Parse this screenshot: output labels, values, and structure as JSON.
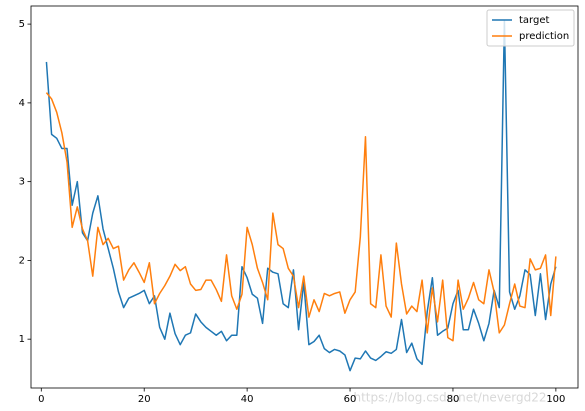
{
  "chart_data": {
    "type": "line",
    "x": [
      1,
      2,
      3,
      4,
      5,
      6,
      7,
      8,
      9,
      10,
      11,
      12,
      13,
      14,
      15,
      16,
      17,
      18,
      19,
      20,
      21,
      22,
      23,
      24,
      25,
      26,
      27,
      28,
      29,
      30,
      31,
      32,
      33,
      34,
      35,
      36,
      37,
      38,
      39,
      40,
      41,
      42,
      43,
      44,
      45,
      46,
      47,
      48,
      49,
      50,
      51,
      52,
      53,
      54,
      55,
      56,
      57,
      58,
      59,
      60,
      61,
      62,
      63,
      64,
      65,
      66,
      67,
      68,
      69,
      70,
      71,
      72,
      73,
      74,
      75,
      76,
      77,
      78,
      79,
      80,
      81,
      82,
      83,
      84,
      85,
      86,
      87,
      88,
      89,
      90,
      91,
      92,
      93,
      94,
      95,
      96,
      97,
      98,
      99,
      100
    ],
    "series": [
      {
        "name": "target",
        "color": "#1f77b4",
        "values": [
          4.52,
          3.6,
          3.55,
          3.42,
          3.42,
          2.7,
          3.0,
          2.35,
          2.25,
          2.6,
          2.82,
          2.4,
          2.15,
          1.9,
          1.6,
          1.4,
          1.52,
          1.55,
          1.58,
          1.62,
          1.45,
          1.55,
          1.15,
          1.0,
          1.33,
          1.07,
          0.93,
          1.05,
          1.08,
          1.32,
          1.22,
          1.15,
          1.1,
          1.05,
          1.1,
          0.98,
          1.05,
          1.05,
          1.92,
          1.78,
          1.57,
          1.52,
          1.2,
          1.9,
          1.85,
          1.83,
          1.45,
          1.4,
          1.88,
          1.12,
          1.72,
          0.93,
          0.97,
          1.05,
          0.88,
          0.83,
          0.87,
          0.85,
          0.8,
          0.6,
          0.76,
          0.75,
          0.85,
          0.76,
          0.73,
          0.78,
          0.84,
          0.82,
          0.87,
          1.25,
          0.83,
          0.95,
          0.75,
          0.68,
          1.35,
          1.78,
          1.05,
          1.1,
          1.14,
          1.45,
          1.62,
          1.12,
          1.12,
          1.38,
          1.2,
          0.98,
          1.2,
          1.62,
          1.4,
          5.05,
          1.6,
          1.38,
          1.55,
          1.88,
          1.82,
          1.3,
          1.83,
          1.25,
          1.7,
          1.92
        ]
      },
      {
        "name": "prediction",
        "color": "#ff7f0e",
        "values": [
          4.13,
          4.05,
          3.88,
          3.62,
          3.25,
          2.42,
          2.68,
          2.4,
          2.25,
          1.8,
          2.42,
          2.2,
          2.28,
          2.15,
          2.18,
          1.75,
          1.88,
          1.97,
          1.85,
          1.72,
          1.97,
          1.45,
          1.58,
          1.68,
          1.8,
          1.95,
          1.87,
          1.92,
          1.7,
          1.62,
          1.63,
          1.75,
          1.75,
          1.63,
          1.48,
          2.07,
          1.55,
          1.38,
          1.57,
          2.42,
          2.2,
          1.9,
          1.72,
          1.5,
          2.6,
          2.2,
          2.15,
          1.9,
          1.8,
          1.4,
          1.8,
          1.28,
          1.5,
          1.35,
          1.58,
          1.55,
          1.58,
          1.6,
          1.33,
          1.5,
          1.6,
          2.3,
          3.57,
          1.45,
          1.4,
          2.07,
          1.42,
          1.28,
          2.22,
          1.7,
          1.32,
          1.42,
          1.35,
          1.75,
          1.08,
          1.65,
          1.22,
          1.75,
          1.02,
          0.98,
          1.75,
          1.38,
          1.52,
          1.72,
          1.5,
          1.45,
          1.88,
          1.6,
          1.08,
          1.18,
          1.45,
          1.7,
          1.42,
          1.4,
          2.02,
          1.88,
          1.9,
          2.07,
          1.3,
          2.05
        ]
      }
    ],
    "xlim": [
      -2,
      104.3
    ],
    "ylim": [
      0.38,
      5.23
    ],
    "xticks": [
      0,
      20,
      40,
      60,
      80,
      100
    ],
    "yticks": [
      1,
      2,
      3,
      4,
      5
    ],
    "legend": "upper right",
    "watermark": "https://blog.csdn.net/nevergd22"
  }
}
